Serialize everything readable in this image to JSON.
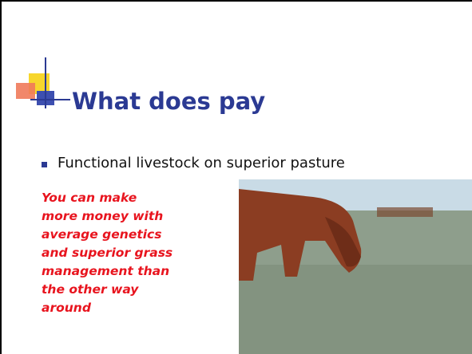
{
  "slide": {
    "title": "What does pay",
    "bullets": [
      "Functional livestock on superior pasture"
    ],
    "callout_lines": [
      "You can make",
      "more money with",
      "average genetics",
      "and superior grass",
      "management than",
      "the other way",
      "around"
    ]
  }
}
